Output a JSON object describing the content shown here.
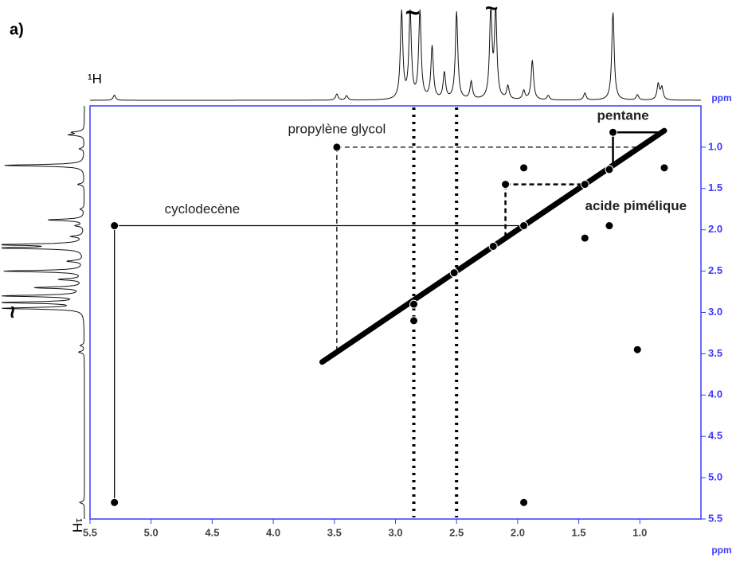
{
  "chart_data": {
    "type": "cosy",
    "panel_label": "a)",
    "x_axis_label": "ppm",
    "y_axis_label": "ppm",
    "nucleus_label": "¹H",
    "break_symbol": "~",
    "xlim": [
      5.5,
      0.5
    ],
    "ylim": [
      0.5,
      5.5
    ],
    "xticks": [
      5.5,
      {
        "value": 5,
        "label": "5.0"
      },
      4.5,
      {
        "value": 4,
        "label": "4.0"
      },
      3.5,
      {
        "value": 3,
        "label": "3.0"
      },
      2.5,
      {
        "value": 2,
        "label": "2.0"
      },
      1.5,
      {
        "value": 1,
        "label": "1.0"
      }
    ],
    "yticks": [
      {
        "value": 1,
        "label": "1.0"
      },
      1.5,
      {
        "value": 2,
        "label": "2.0"
      },
      2.5,
      {
        "value": 3,
        "label": "3.0"
      },
      3.5,
      {
        "value": 4,
        "label": "4.0"
      },
      4.5,
      {
        "value": 5,
        "label": "5.0"
      },
      5.5
    ],
    "axis_color": "#3a3aff",
    "diagonal": [
      3.6,
      0.8
    ],
    "t1_noise_x": [
      2.85,
      2.5
    ],
    "cross_peaks": {
      "x": [
        5.3,
        5.3,
        3.48,
        1.02,
        1.95,
        1.25,
        1.45,
        2.1,
        1.22,
        0.8,
        1.45,
        1.25,
        1.95,
        2.52,
        1.95,
        2.85,
        2.2,
        2.85
      ],
      "y": [
        1.95,
        5.3,
        1.0,
        3.45,
        1.25,
        1.95,
        2.1,
        1.45,
        0.82,
        1.25,
        1.45,
        1.27,
        5.3,
        2.52,
        1.95,
        2.9,
        2.2,
        3.1
      ]
    },
    "projection": {
      "x": [
        5.3,
        3.48,
        3.4,
        2.95,
        2.88,
        2.8,
        2.7,
        2.6,
        2.5,
        2.38,
        2.22,
        2.18,
        2.08,
        1.95,
        1.88,
        1.75,
        1.45,
        1.22,
        1.02,
        0.85,
        0.82
      ],
      "heights": [
        6,
        7,
        5,
        100,
        100,
        100,
        60,
        30,
        100,
        20,
        100,
        100,
        15,
        10,
        45,
        5,
        8,
        100,
        6,
        18,
        14
      ]
    },
    "annotations": [
      {
        "text": "propylène glycol",
        "x": 3.48,
        "y": 1.0,
        "dash": "dashed",
        "bold": false
      },
      {
        "text": "cyclodecène",
        "x": 5.3,
        "y": 1.95,
        "dash": "solid",
        "bold": false
      },
      {
        "text": "pentane",
        "x": 1.22,
        "y": 0.82,
        "dash": "solid",
        "bold": true
      },
      {
        "text": "acide pimélique",
        "x": 2.1,
        "y": 1.45,
        "dash": "dashed",
        "bold": true
      }
    ]
  }
}
